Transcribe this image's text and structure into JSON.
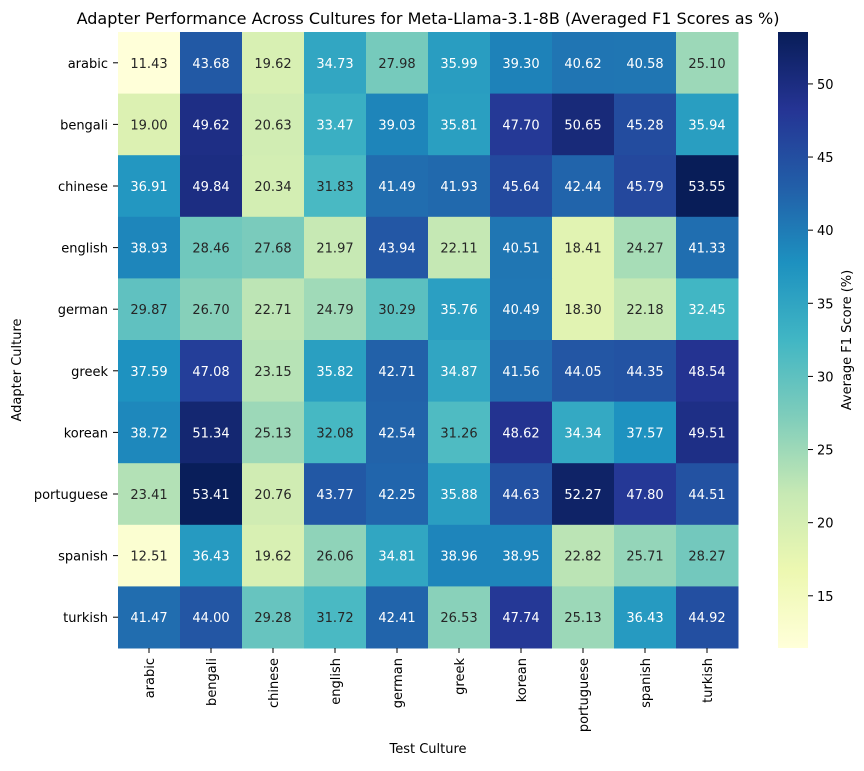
{
  "chart_data": {
    "type": "heatmap",
    "title": "Adapter Performance Across Cultures for Meta-Llama-3.1-8B (Averaged F1 Scores as %)",
    "xlabel": "Test Culture",
    "ylabel": "Adapter Culture",
    "x_categories": [
      "arabic",
      "bengali",
      "chinese",
      "english",
      "german",
      "greek",
      "korean",
      "portuguese",
      "spanish",
      "turkish"
    ],
    "y_categories": [
      "arabic",
      "bengali",
      "chinese",
      "english",
      "german",
      "greek",
      "korean",
      "portuguese",
      "spanish",
      "turkish"
    ],
    "values": [
      [
        11.43,
        43.68,
        19.62,
        34.73,
        27.98,
        35.99,
        39.3,
        40.62,
        40.58,
        25.1
      ],
      [
        19.0,
        49.62,
        20.63,
        33.47,
        39.03,
        35.81,
        47.7,
        50.65,
        45.28,
        35.94
      ],
      [
        36.91,
        49.84,
        20.34,
        31.83,
        41.49,
        41.93,
        45.64,
        42.44,
        45.79,
        53.55
      ],
      [
        38.93,
        28.46,
        27.68,
        21.97,
        43.94,
        22.11,
        40.51,
        18.41,
        24.27,
        41.33
      ],
      [
        29.87,
        26.7,
        22.71,
        24.79,
        30.29,
        35.76,
        40.49,
        18.3,
        22.18,
        32.45
      ],
      [
        37.59,
        47.08,
        23.15,
        35.82,
        42.71,
        34.87,
        41.56,
        44.05,
        44.35,
        48.54
      ],
      [
        38.72,
        51.34,
        25.13,
        32.08,
        42.54,
        31.26,
        48.62,
        34.34,
        37.57,
        49.51
      ],
      [
        23.41,
        53.41,
        20.76,
        43.77,
        42.25,
        35.88,
        44.63,
        52.27,
        47.8,
        44.51
      ],
      [
        12.51,
        36.43,
        19.62,
        26.06,
        34.81,
        38.96,
        38.95,
        22.82,
        25.71,
        28.27
      ],
      [
        41.47,
        44.0,
        29.28,
        31.72,
        42.41,
        26.53,
        47.74,
        25.13,
        36.43,
        44.92
      ]
    ],
    "value_format": "2 decimals",
    "colormap": "YlGnBu",
    "colorbar": {
      "label": "Average F1 Score (%)",
      "vmin": 11.43,
      "vmax": 53.55,
      "ticks": [
        15,
        20,
        25,
        30,
        35,
        40,
        45,
        50
      ]
    }
  }
}
